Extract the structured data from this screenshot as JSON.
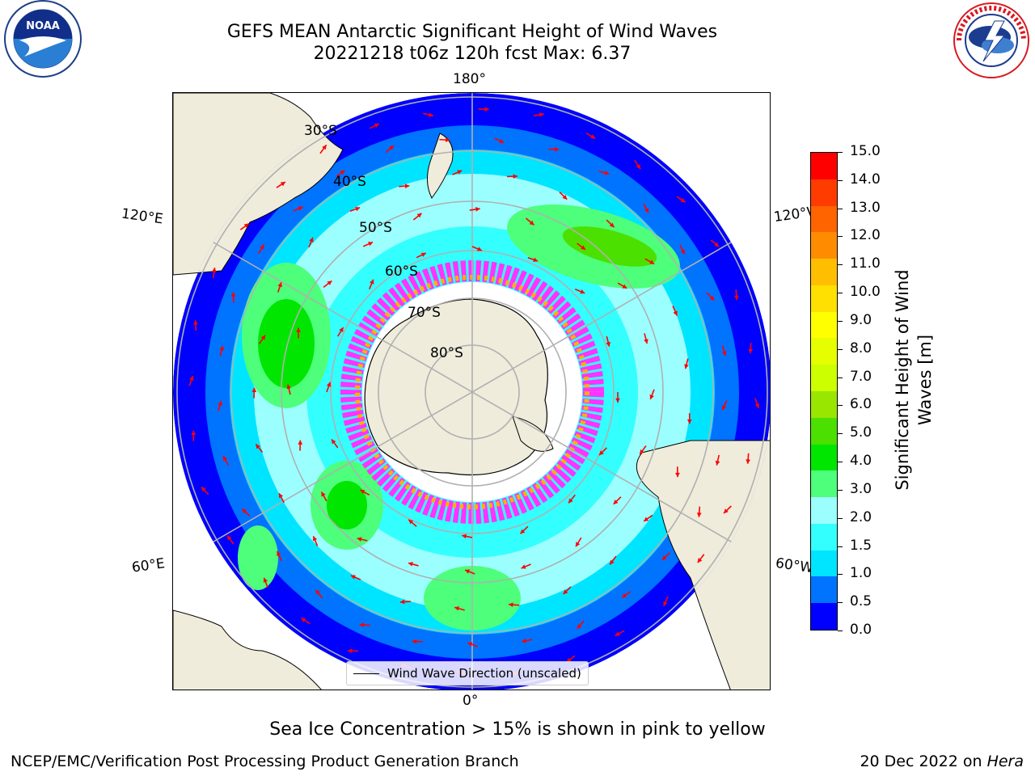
{
  "header": {
    "title_line1": "GEFS MEAN Antarctic Significant Height of Wind Waves",
    "title_line2": "20221218 t06z 120h fcst   Max: 6.37"
  },
  "logos": {
    "noaa_text": "NOAA",
    "noaa_ring_text": "NATIONAL OCEANIC AND ATMOSPHERIC ADMINISTRATION · U.S. DEPARTMENT OF COMMERCE",
    "nws_ring_text": "NATIONAL WEATHER SERVICE"
  },
  "map": {
    "longitude_labels": {
      "top": "180°",
      "bottom": "0°",
      "left_upper": "120°E",
      "left_lower": "60°E",
      "right_upper": "120°W",
      "right_lower": "60°W"
    },
    "latitude_labels": [
      "30°S",
      "40°S",
      "50°S",
      "60°S",
      "70°S",
      "80°S"
    ],
    "legend_label": "Wind Wave Direction (unscaled)",
    "colors": {
      "land": "#efecdc",
      "ocean_low": "#0000ff",
      "ocean_mid": "#00e5ff",
      "arrow": "#ff0000",
      "ice_edge": "#ff33ff"
    }
  },
  "colorbar": {
    "label": "Significant Height of Wind Waves [m]",
    "label_line1": "Significant Height of Wind",
    "label_line2": "Waves [m]",
    "ticks": [
      "15.0",
      "14.0",
      "13.0",
      "12.0",
      "11.0",
      "10.0",
      "9.0",
      "8.0",
      "7.0",
      "6.0",
      "5.0",
      "4.0",
      "3.0",
      "2.0",
      "1.5",
      "1.0",
      "0.5",
      "0.0"
    ],
    "colors_bottom_to_top": [
      "#0000ff",
      "#0073ff",
      "#00e5ff",
      "#33ffff",
      "#9cffff",
      "#4dff7a",
      "#00e600",
      "#4ce000",
      "#99e600",
      "#ccff00",
      "#e6ff00",
      "#ffff00",
      "#ffe000",
      "#ffbf00",
      "#ff8c00",
      "#ff6400",
      "#ff3c00",
      "#ff0000"
    ]
  },
  "notes": {
    "sea_ice": "Sea Ice Concentration > 15% is shown in pink to yellow"
  },
  "footer": {
    "left": "NCEP/EMC/Verification Post Processing Product Generation Branch",
    "right_prefix": "20 Dec 2022 on ",
    "right_host": "Hera"
  }
}
